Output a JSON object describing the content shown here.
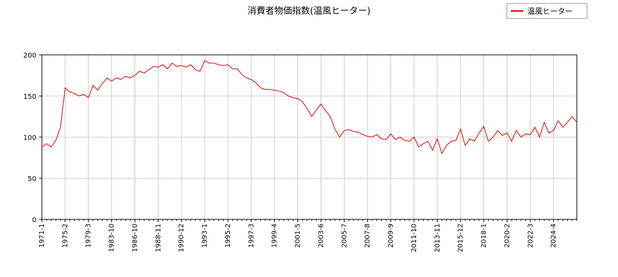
{
  "chart_data": {
    "type": "line",
    "title": "消費者物価指数(温風ヒーター)",
    "categories": [
      "1971-1",
      null,
      null,
      null,
      null,
      "1975-2",
      null,
      null,
      null,
      null,
      "1979-3",
      null,
      null,
      null,
      null,
      "1983-10",
      null,
      null,
      null,
      null,
      "1986-10",
      null,
      null,
      null,
      null,
      "1988-11",
      null,
      null,
      null,
      null,
      "1990-12",
      null,
      null,
      null,
      null,
      "1993-1",
      null,
      null,
      null,
      null,
      "1995-2",
      null,
      null,
      null,
      null,
      "1997-3",
      null,
      null,
      null,
      null,
      "1999-4",
      null,
      null,
      null,
      null,
      "2001-5",
      null,
      null,
      null,
      null,
      "2003-6",
      null,
      null,
      null,
      null,
      "2005-7",
      null,
      null,
      null,
      null,
      "2007-8",
      null,
      null,
      null,
      null,
      "2009-9",
      null,
      null,
      null,
      null,
      "2011-10",
      null,
      null,
      null,
      null,
      "2013-11",
      null,
      null,
      null,
      null,
      "2015-12",
      null,
      null,
      null,
      null,
      "2018-1",
      null,
      null,
      null,
      null,
      "2020-2",
      null,
      null,
      null,
      null,
      "2022-3",
      null,
      null,
      null,
      null,
      "2024-4",
      null,
      null,
      null,
      null,
      null
    ],
    "series": [
      {
        "name": "温風ヒーター",
        "color": "#dd0000",
        "values": [
          88,
          92,
          88,
          96,
          112,
          160,
          155,
          153,
          150,
          152,
          148,
          163,
          157,
          165,
          172,
          168,
          172,
          170,
          174,
          172,
          175,
          180,
          178,
          182,
          186,
          185,
          188,
          183,
          190,
          186,
          187,
          185,
          188,
          182,
          180,
          193,
          190,
          190,
          188,
          187,
          188,
          183,
          183,
          176,
          172,
          170,
          166,
          160,
          158,
          158,
          157,
          156,
          154,
          150,
          148,
          147,
          143,
          135,
          125,
          133,
          140,
          132,
          125,
          110,
          100,
          108,
          109,
          107,
          106,
          103,
          101,
          100,
          103,
          98,
          97,
          104,
          97,
          100,
          96,
          95,
          100,
          88,
          92,
          95,
          84,
          98,
          80,
          90,
          95,
          96,
          110,
          90,
          98,
          95,
          105,
          113,
          95,
          100,
          108,
          102,
          105,
          95,
          108,
          100,
          104,
          103,
          112,
          100,
          118,
          105,
          108,
          120,
          112,
          118,
          125,
          118
        ]
      }
    ],
    "ylim": [
      0,
      200
    ],
    "yticks": [
      0,
      50,
      100,
      150,
      200
    ],
    "grid": true,
    "legend": "top-right"
  }
}
